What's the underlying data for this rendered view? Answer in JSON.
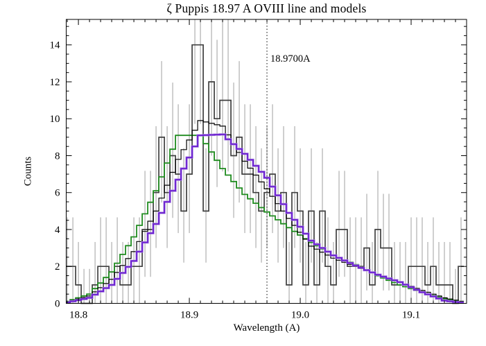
{
  "title": "ζ Puppis 18.97 A OVIII line and models",
  "chart_data": {
    "type": "line",
    "subtype": "stepped histogram with error bars and three stepped model curves",
    "title": "ζ Puppis 18.97 A OVIII line and models",
    "xlabel": "Wavelength (A)",
    "ylabel": "Counts",
    "xlim": [
      18.789,
      19.15
    ],
    "ylim": [
      0,
      15.38
    ],
    "x_ticks": [
      18.8,
      18.9,
      19.0,
      19.1
    ],
    "x_minor_step": 0.01,
    "y_ticks": [
      0,
      2,
      4,
      6,
      8,
      10,
      12,
      14
    ],
    "y_minor_step": 0.5,
    "grid": "off",
    "legend": "none",
    "reference_line": {
      "x": 18.97,
      "label": "18.9700A",
      "style": "dotted-vertical"
    },
    "histogram": {
      "name": "observed counts",
      "bin_start_center": 18.79,
      "bin_step": 0.005,
      "counts": [
        2,
        2,
        1,
        0,
        0,
        1,
        2,
        2,
        1,
        2,
        1,
        1,
        2,
        2,
        4,
        4,
        6,
        9,
        6,
        8,
        7,
        5,
        7,
        14,
        14,
        5,
        12,
        10,
        11,
        11,
        8,
        9,
        7,
        7,
        6,
        5,
        6,
        7,
        5,
        6,
        1,
        6,
        5,
        1,
        5,
        1,
        5,
        2,
        1,
        4,
        4,
        2,
        2,
        2,
        3,
        1,
        4,
        3,
        3,
        1,
        1,
        1,
        2,
        2,
        2,
        1,
        2,
        1,
        1,
        1,
        0,
        2
      ],
      "color": "#3f3f3f",
      "error_bars": {
        "type": "poisson",
        "upper_rule": "N + 1 + sqrt(N + 0.75)",
        "lower_rule": "max(0, N - sqrt(N + 0.25) - 0.5)",
        "color": "#9f9f9f"
      }
    },
    "models": {
      "sample_x_start": 18.79,
      "sample_x_step": 0.02,
      "series": [
        {
          "name": "model-green",
          "color": "#1f8b1f",
          "values": [
            0.1,
            0.5,
            1.7,
            3.6,
            6.1,
            9.1,
            9.1,
            7.3,
            5.9,
            4.95,
            4.1,
            3.3,
            2.6,
            2.1,
            1.5,
            1.0,
            0.6,
            0.25,
            0.05
          ]
        },
        {
          "name": "model-black",
          "color": "#000000",
          "values": [
            0.07,
            0.4,
            1.3,
            2.8,
            5.0,
            7.8,
            9.9,
            9.6,
            7.7,
            6.2,
            4.6,
            3.1,
            2.45,
            2.0,
            1.55,
            1.15,
            0.7,
            0.3,
            0.05
          ]
        },
        {
          "name": "model-purple",
          "color": "#6a1fd0",
          "halo_color": "#a87fe0",
          "values": [
            0.05,
            0.3,
            1.0,
            2.3,
            4.3,
            6.7,
            9.1,
            9.15,
            8.1,
            6.8,
            4.9,
            3.4,
            2.6,
            2.05,
            1.55,
            1.15,
            0.6,
            0.15,
            0.0
          ]
        }
      ]
    },
    "axis_color": "#000000",
    "background_color": "#ffffff"
  }
}
